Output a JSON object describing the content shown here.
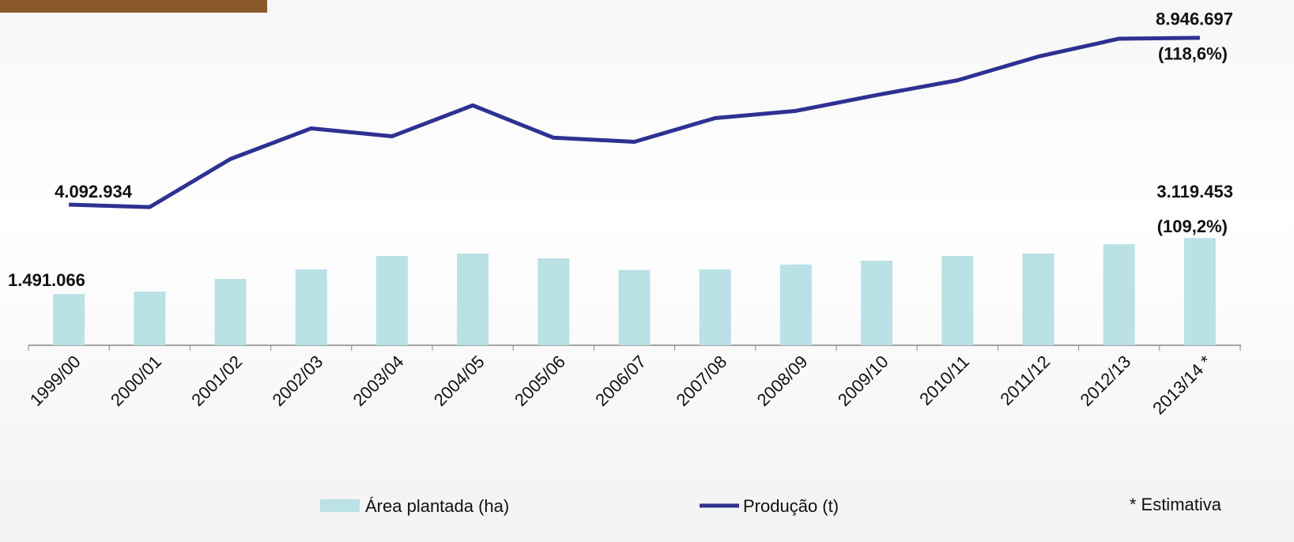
{
  "chart_data": {
    "type": "bar",
    "categories": [
      "1999/00",
      "2000/01",
      "2001/02",
      "2002/03",
      "2003/04",
      "2004/05",
      "2005/06",
      "2006/07",
      "2007/08",
      "2008/09",
      "2009/10",
      "2010/11",
      "2011/12",
      "2012/13",
      "2013/14 *"
    ],
    "series": [
      {
        "name": "Área plantada (ha)",
        "type": "bar",
        "color": "#b9e1e6",
        "values": [
          1491066,
          1560000,
          1930000,
          2210000,
          2600000,
          2670000,
          2530000,
          2190000,
          2210000,
          2350000,
          2460000,
          2600000,
          2670000,
          2940000,
          3119453
        ],
        "value_labels": [
          "1.491.066",
          null,
          null,
          null,
          null,
          null,
          null,
          null,
          null,
          null,
          null,
          null,
          null,
          null,
          "3.119.453"
        ]
      },
      {
        "name": "Produção (t)",
        "type": "line",
        "axis": "y2",
        "color": "#2e3192",
        "values": [
          4092934,
          4020000,
          5420000,
          6310000,
          6080000,
          6980000,
          6040000,
          5920000,
          6610000,
          6820000,
          7280000,
          7710000,
          8400000,
          8920000,
          8946697
        ],
        "value_labels": [
          "4.092.934",
          null,
          null,
          null,
          null,
          null,
          null,
          null,
          null,
          null,
          null,
          null,
          null,
          null,
          "8.946.697"
        ]
      }
    ],
    "annotations": [
      "(109,2%)",
      "(118,6%)"
    ],
    "footnote": "* Estimativa",
    "ylim": [
      0,
      10000000
    ],
    "y2lim": [
      0,
      10000000
    ],
    "grid": false,
    "legend": "bottom"
  }
}
